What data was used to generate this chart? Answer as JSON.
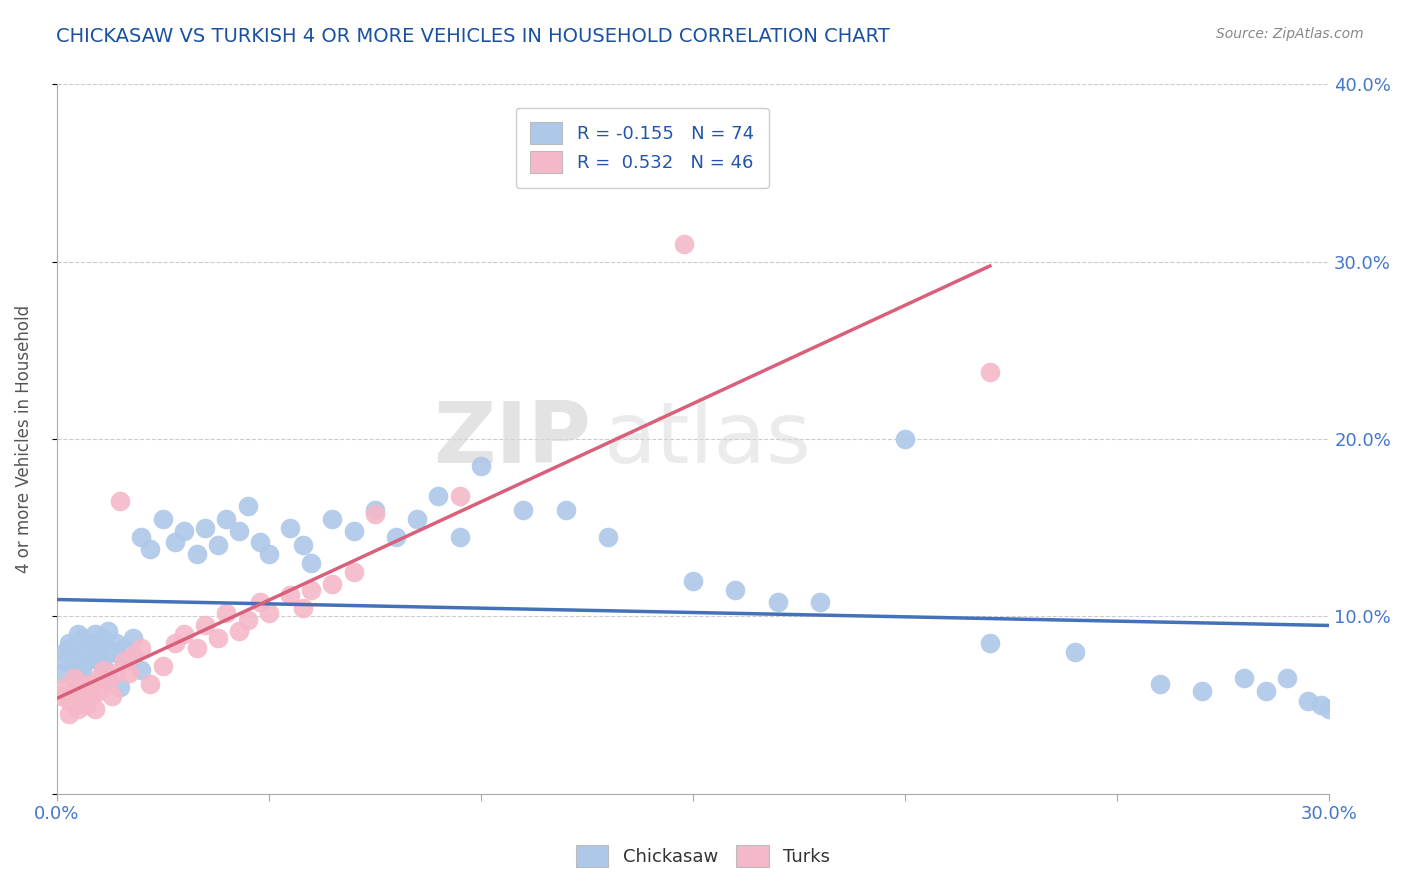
{
  "title": "CHICKASAW VS TURKISH 4 OR MORE VEHICLES IN HOUSEHOLD CORRELATION CHART",
  "source": "Source: ZipAtlas.com",
  "ylabel": "4 or more Vehicles in Household",
  "xlim": [
    0.0,
    0.3
  ],
  "ylim": [
    0.0,
    0.4
  ],
  "xticks": [
    0.0,
    0.05,
    0.1,
    0.15,
    0.2,
    0.25,
    0.3
  ],
  "yticks": [
    0.0,
    0.1,
    0.2,
    0.3,
    0.4
  ],
  "xtick_labels": [
    "0.0%",
    "",
    "",
    "",
    "",
    "",
    "30.0%"
  ],
  "ytick_labels_right": [
    "",
    "10.0%",
    "20.0%",
    "30.0%",
    "40.0%"
  ],
  "legend_blue_label": "R = -0.155   N = 74",
  "legend_pink_label": "R =  0.532   N = 46",
  "blue_color": "#adc8e8",
  "pink_color": "#f5b8c8",
  "blue_line_color": "#4472b8",
  "pink_line_color": "#d9607a",
  "watermark_zip": "ZIP",
  "watermark_atlas": "atlas",
  "background_color": "#ffffff",
  "grid_color": "#cccccc",
  "title_color": "#1a50a0",
  "source_color": "#888888",
  "blue_x": [
    0.001,
    0.002,
    0.002,
    0.003,
    0.003,
    0.004,
    0.004,
    0.005,
    0.005,
    0.006,
    0.006,
    0.007,
    0.007,
    0.008,
    0.008,
    0.009,
    0.009,
    0.01,
    0.01,
    0.01,
    0.011,
    0.011,
    0.012,
    0.012,
    0.013,
    0.014,
    0.015,
    0.016,
    0.017,
    0.018,
    0.02,
    0.022,
    0.025,
    0.028,
    0.03,
    0.033,
    0.035,
    0.038,
    0.04,
    0.043,
    0.045,
    0.048,
    0.05,
    0.055,
    0.058,
    0.06,
    0.065,
    0.07,
    0.075,
    0.08,
    0.085,
    0.09,
    0.095,
    0.1,
    0.11,
    0.12,
    0.13,
    0.15,
    0.16,
    0.17,
    0.18,
    0.2,
    0.22,
    0.24,
    0.26,
    0.27,
    0.28,
    0.285,
    0.29,
    0.295,
    0.298,
    0.3,
    0.015,
    0.02
  ],
  "blue_y": [
    0.068,
    0.075,
    0.08,
    0.082,
    0.085,
    0.078,
    0.072,
    0.09,
    0.065,
    0.088,
    0.07,
    0.08,
    0.075,
    0.085,
    0.078,
    0.082,
    0.09,
    0.075,
    0.08,
    0.085,
    0.088,
    0.072,
    0.092,
    0.065,
    0.08,
    0.085,
    0.078,
    0.082,
    0.075,
    0.088,
    0.145,
    0.138,
    0.155,
    0.142,
    0.148,
    0.135,
    0.15,
    0.14,
    0.155,
    0.148,
    0.162,
    0.142,
    0.135,
    0.15,
    0.14,
    0.13,
    0.155,
    0.148,
    0.16,
    0.145,
    0.155,
    0.168,
    0.145,
    0.185,
    0.16,
    0.16,
    0.145,
    0.12,
    0.115,
    0.108,
    0.108,
    0.2,
    0.085,
    0.08,
    0.062,
    0.058,
    0.065,
    0.058,
    0.065,
    0.052,
    0.05,
    0.048,
    0.06,
    0.07
  ],
  "pink_x": [
    0.001,
    0.002,
    0.003,
    0.003,
    0.004,
    0.004,
    0.005,
    0.005,
    0.006,
    0.007,
    0.007,
    0.008,
    0.008,
    0.009,
    0.01,
    0.01,
    0.011,
    0.012,
    0.013,
    0.014,
    0.015,
    0.016,
    0.017,
    0.018,
    0.02,
    0.022,
    0.025,
    0.028,
    0.03,
    0.033,
    0.035,
    0.038,
    0.04,
    0.043,
    0.045,
    0.048,
    0.05,
    0.055,
    0.058,
    0.06,
    0.065,
    0.07,
    0.075,
    0.095,
    0.148,
    0.22
  ],
  "pink_y": [
    0.055,
    0.06,
    0.052,
    0.045,
    0.058,
    0.065,
    0.048,
    0.055,
    0.062,
    0.05,
    0.058,
    0.062,
    0.055,
    0.048,
    0.065,
    0.058,
    0.07,
    0.062,
    0.055,
    0.068,
    0.165,
    0.075,
    0.068,
    0.078,
    0.082,
    0.062,
    0.072,
    0.085,
    0.09,
    0.082,
    0.095,
    0.088,
    0.102,
    0.092,
    0.098,
    0.108,
    0.102,
    0.112,
    0.105,
    0.115,
    0.118,
    0.125,
    0.158,
    0.168,
    0.31,
    0.238
  ]
}
